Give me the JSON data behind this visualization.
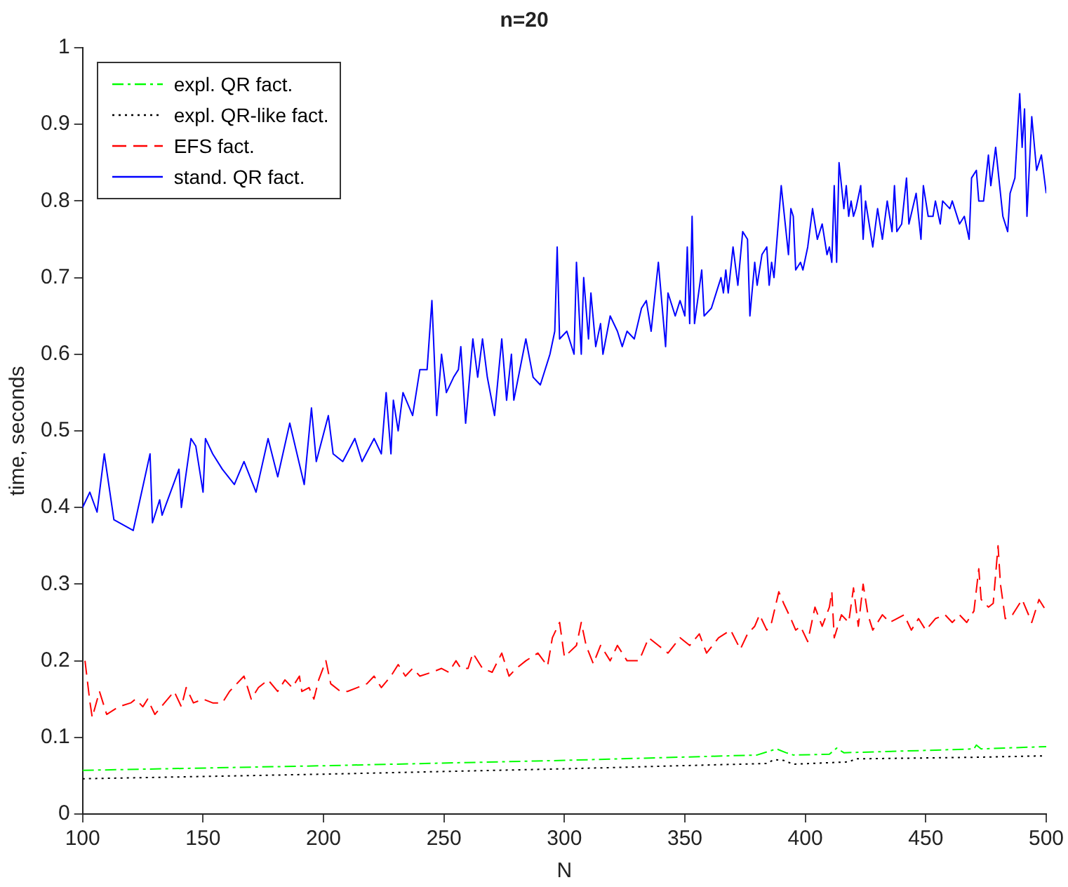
{
  "chart_data": {
    "type": "line",
    "title": "n=20",
    "xlabel": "N",
    "ylabel": "time, seconds",
    "xlim": [
      100,
      500
    ],
    "xticks": [
      100,
      150,
      200,
      250,
      300,
      350,
      400,
      450,
      500
    ],
    "ylim": [
      0,
      1
    ],
    "yticks": [
      0,
      0.1,
      0.2,
      0.3,
      0.4,
      0.5,
      0.6,
      0.7,
      0.8,
      0.9,
      1
    ],
    "grid": false,
    "legend": "top left",
    "marker": "none",
    "series": [
      {
        "name": "expl. QR fact.",
        "color": "#00ff00",
        "line_style": "dashdot",
        "x": [
          100,
          200,
          300,
          380,
          388,
          392,
          395,
          410,
          413,
          416,
          450,
          470,
          471,
          473,
          500
        ],
        "values": [
          0.057,
          0.063,
          0.07,
          0.077,
          0.085,
          0.08,
          0.077,
          0.078,
          0.086,
          0.08,
          0.083,
          0.085,
          0.09,
          0.085,
          0.088
        ]
      },
      {
        "name": "expl. QR-like fact.",
        "color": "#000000",
        "line_style": "dotted",
        "x": [
          100,
          200,
          300,
          384,
          387,
          391,
          395,
          418,
          421,
          470,
          500
        ],
        "values": [
          0.046,
          0.052,
          0.059,
          0.066,
          0.071,
          0.07,
          0.065,
          0.068,
          0.072,
          0.074,
          0.076
        ]
      },
      {
        "name": "EFS fact.",
        "color": "#ff0000",
        "line_style": "dashed",
        "x": [
          101,
          103,
          104,
          107,
          110,
          115,
          120,
          122,
          125,
          127,
          130,
          134,
          138,
          141,
          143,
          146,
          150,
          154,
          158,
          161,
          167,
          170,
          173,
          177,
          181,
          184,
          187,
          190,
          191,
          194,
          196,
          198,
          201,
          203,
          207,
          210,
          214,
          218,
          221,
          224,
          228,
          231,
          234,
          237,
          240,
          245,
          249,
          252,
          255,
          257,
          260,
          262,
          266,
          270,
          274,
          277,
          280,
          284,
          289,
          293,
          295,
          298,
          300,
          305,
          307,
          309,
          312,
          315,
          319,
          322,
          326,
          331,
          335,
          339,
          343,
          348,
          352,
          356,
          359,
          364,
          369,
          373,
          376,
          379,
          381,
          384,
          386,
          389,
          391,
          394,
          396,
          398,
          401,
          404,
          407,
          410,
          411,
          412,
          415,
          418,
          420,
          422,
          424,
          426,
          428,
          432,
          435,
          438,
          441,
          444,
          447,
          450,
          454,
          458,
          461,
          464,
          467,
          470,
          472,
          473,
          476,
          478,
          480,
          481,
          483,
          486,
          490,
          494,
          497,
          499,
          500
        ],
        "values": [
          0.2,
          0.147,
          0.126,
          0.16,
          0.13,
          0.14,
          0.145,
          0.15,
          0.14,
          0.15,
          0.13,
          0.145,
          0.16,
          0.14,
          0.165,
          0.145,
          0.15,
          0.145,
          0.145,
          0.16,
          0.18,
          0.15,
          0.165,
          0.175,
          0.16,
          0.175,
          0.165,
          0.18,
          0.16,
          0.165,
          0.15,
          0.175,
          0.2,
          0.17,
          0.16,
          0.16,
          0.165,
          0.17,
          0.18,
          0.165,
          0.18,
          0.195,
          0.18,
          0.19,
          0.18,
          0.185,
          0.19,
          0.185,
          0.2,
          0.19,
          0.19,
          0.21,
          0.19,
          0.185,
          0.21,
          0.18,
          0.19,
          0.2,
          0.21,
          0.193,
          0.23,
          0.25,
          0.205,
          0.22,
          0.25,
          0.22,
          0.196,
          0.22,
          0.2,
          0.22,
          0.2,
          0.2,
          0.23,
          0.22,
          0.21,
          0.23,
          0.22,
          0.235,
          0.21,
          0.23,
          0.24,
          0.215,
          0.235,
          0.245,
          0.26,
          0.24,
          0.25,
          0.29,
          0.275,
          0.255,
          0.24,
          0.245,
          0.225,
          0.27,
          0.245,
          0.27,
          0.29,
          0.23,
          0.26,
          0.25,
          0.295,
          0.245,
          0.3,
          0.26,
          0.24,
          0.26,
          0.25,
          0.255,
          0.26,
          0.24,
          0.255,
          0.24,
          0.255,
          0.26,
          0.25,
          0.26,
          0.25,
          0.265,
          0.32,
          0.28,
          0.27,
          0.275,
          0.35,
          0.3,
          0.255,
          0.26,
          0.28,
          0.25,
          0.28,
          0.27,
          0.265
        ]
      },
      {
        "name": "stand. QR fact.",
        "color": "#0000ff",
        "line_style": "solid",
        "x": [
          100,
          103,
          106,
          109,
          113,
          121,
          128,
          129,
          132,
          133,
          140,
          141,
          145,
          147,
          150,
          151,
          154,
          158,
          163,
          167,
          172,
          177,
          181,
          186,
          189,
          192,
          195,
          197,
          202,
          204,
          208,
          213,
          216,
          221,
          224,
          226,
          228,
          229,
          231,
          233,
          237,
          240,
          243,
          245,
          247,
          249,
          251,
          254,
          256,
          257,
          259,
          262,
          264,
          266,
          268,
          271,
          274,
          276,
          278,
          279,
          284,
          287,
          290,
          294,
          296,
          297,
          298,
          301,
          304,
          305,
          307,
          308,
          310,
          311,
          313,
          315,
          316,
          319,
          322,
          324,
          326,
          329,
          332,
          334,
          336,
          339,
          342,
          343,
          346,
          348,
          350,
          351,
          352,
          353,
          354,
          357,
          358,
          361,
          365,
          366,
          367,
          368,
          370,
          372,
          374,
          376,
          377,
          379,
          380,
          382,
          384,
          385,
          386,
          387,
          390,
          393,
          394,
          395,
          396,
          398,
          399,
          401,
          403,
          405,
          407,
          409,
          410,
          411,
          412,
          413,
          414,
          416,
          417,
          418,
          419,
          420,
          421,
          423,
          424,
          425,
          428,
          430,
          432,
          434,
          436,
          437,
          438,
          440,
          442,
          443,
          446,
          448,
          449,
          451,
          453,
          454,
          456,
          457,
          460,
          461,
          464,
          466,
          468,
          469,
          471,
          472,
          474,
          476,
          477,
          479,
          482,
          484,
          485,
          487,
          489,
          490,
          491,
          492,
          494,
          496,
          498,
          500
        ],
        "values": [
          0.4,
          0.42,
          0.394,
          0.47,
          0.384,
          0.37,
          0.47,
          0.38,
          0.41,
          0.39,
          0.45,
          0.4,
          0.49,
          0.48,
          0.42,
          0.49,
          0.47,
          0.45,
          0.43,
          0.46,
          0.42,
          0.49,
          0.44,
          0.51,
          0.47,
          0.43,
          0.53,
          0.46,
          0.52,
          0.47,
          0.46,
          0.49,
          0.46,
          0.49,
          0.47,
          0.55,
          0.47,
          0.54,
          0.5,
          0.55,
          0.52,
          0.58,
          0.58,
          0.67,
          0.52,
          0.6,
          0.55,
          0.57,
          0.58,
          0.61,
          0.51,
          0.62,
          0.57,
          0.62,
          0.57,
          0.52,
          0.62,
          0.54,
          0.6,
          0.54,
          0.62,
          0.57,
          0.56,
          0.6,
          0.63,
          0.74,
          0.62,
          0.63,
          0.6,
          0.72,
          0.6,
          0.7,
          0.62,
          0.68,
          0.61,
          0.64,
          0.6,
          0.65,
          0.63,
          0.61,
          0.63,
          0.62,
          0.66,
          0.67,
          0.63,
          0.72,
          0.61,
          0.68,
          0.65,
          0.67,
          0.65,
          0.74,
          0.64,
          0.78,
          0.64,
          0.71,
          0.65,
          0.66,
          0.7,
          0.68,
          0.71,
          0.68,
          0.74,
          0.69,
          0.76,
          0.75,
          0.65,
          0.72,
          0.69,
          0.73,
          0.74,
          0.69,
          0.72,
          0.7,
          0.82,
          0.73,
          0.79,
          0.78,
          0.71,
          0.72,
          0.71,
          0.74,
          0.79,
          0.75,
          0.77,
          0.73,
          0.74,
          0.72,
          0.82,
          0.72,
          0.85,
          0.79,
          0.82,
          0.78,
          0.8,
          0.78,
          0.79,
          0.82,
          0.75,
          0.8,
          0.74,
          0.79,
          0.75,
          0.8,
          0.76,
          0.82,
          0.76,
          0.77,
          0.83,
          0.77,
          0.81,
          0.75,
          0.82,
          0.78,
          0.78,
          0.8,
          0.77,
          0.8,
          0.79,
          0.8,
          0.77,
          0.78,
          0.75,
          0.83,
          0.84,
          0.8,
          0.8,
          0.86,
          0.82,
          0.87,
          0.78,
          0.76,
          0.81,
          0.83,
          0.94,
          0.87,
          0.92,
          0.78,
          0.91,
          0.84,
          0.86,
          0.81
        ]
      }
    ]
  }
}
